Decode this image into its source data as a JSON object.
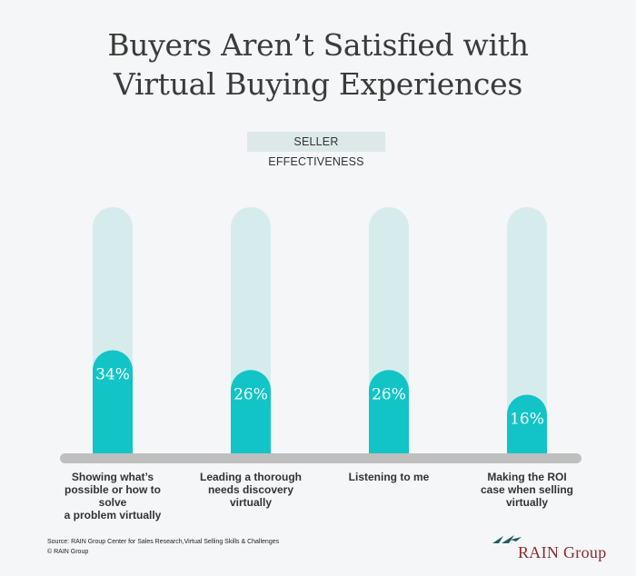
{
  "title_lines": [
    "Buyers Aren’t Satisfied with",
    "Virtual Buying Experiences"
  ],
  "subtitle": "SELLER EFFECTIVENESS",
  "chart_data": {
    "type": "bar",
    "categories": [
      "Showing what’s possible or how to solve a problem virtually",
      "Leading a thorough needs discovery virtually",
      "Listening to me",
      "Making the ROI case when selling virtually"
    ],
    "category_lines": [
      [
        "Showing what’s",
        "possible or how to solve",
        "a problem virtually"
      ],
      [
        "Leading a thorough",
        "needs discovery",
        "virtually"
      ],
      [
        "Listening to me"
      ],
      [
        "Making the ROI",
        "case when selling",
        "virtually"
      ]
    ],
    "values": [
      34,
      26,
      26,
      16
    ],
    "value_labels": [
      "34%",
      "26%",
      "26%",
      "16%"
    ],
    "ylim": [
      0,
      100
    ],
    "colors": {
      "bar": "#12c4c6",
      "track": "#d6ecec",
      "baseline": "#bfbfbf"
    }
  },
  "source_lines": [
    "Source: RAIN Group Center for Sales Research,Virtual Selling Skills & Challenges",
    "© RAIN Group"
  ],
  "logo_text": "RAIN Group",
  "logo_colors": {
    "text": "#8b2c2c",
    "mark": "#1f5e63"
  }
}
